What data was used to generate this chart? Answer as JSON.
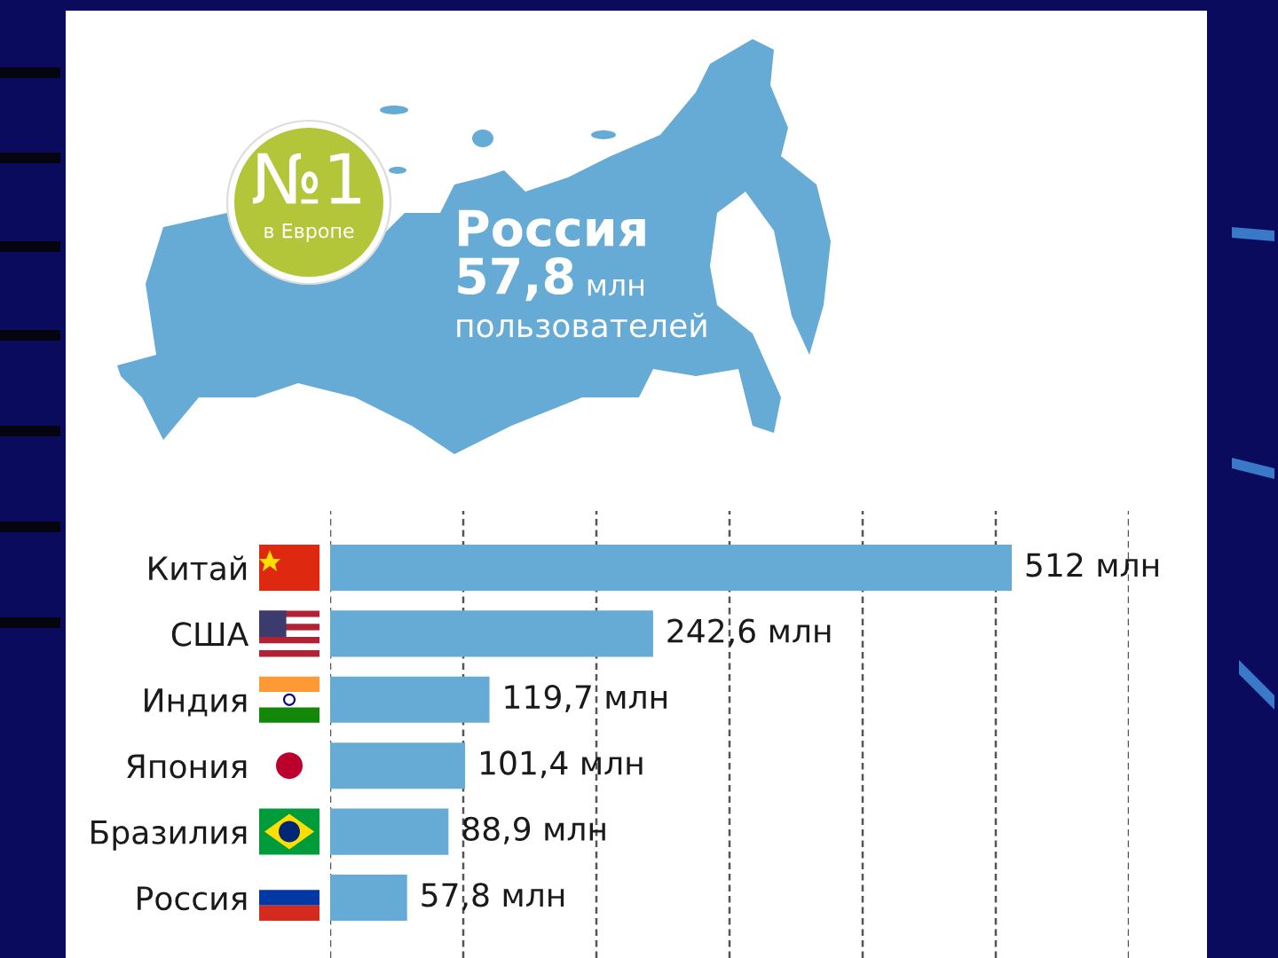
{
  "chart_data": {
    "type": "bar",
    "orientation": "horizontal",
    "categories": [
      "Китай",
      "США",
      "Индия",
      "Япония",
      "Бразилия",
      "Россия"
    ],
    "values": [
      512,
      242.6,
      119.7,
      101.4,
      88.9,
      57.8
    ],
    "color": "#66aad6",
    "value_labels": [
      "512 млн",
      "242,6 млн",
      "119,7 млн",
      "101,4 млн",
      "88,9 млн",
      "57,8 млн"
    ],
    "xlim": [
      0,
      600
    ],
    "xticks": [
      {
        "value": 0,
        "label": null
      },
      {
        "value": 100,
        "label": null
      },
      {
        "value": 200,
        "label": null
      },
      {
        "value": 300,
        "label": null
      },
      {
        "value": 400,
        "label": null
      },
      {
        "value": 500,
        "label": null
      },
      {
        "value": 600,
        "label": null
      }
    ],
    "grid": "x",
    "tick_labels": "y",
    "annotations": [
      "№1",
      "в Европе",
      "Россия",
      "57,8",
      "млн",
      "пользователей"
    ]
  }
}
